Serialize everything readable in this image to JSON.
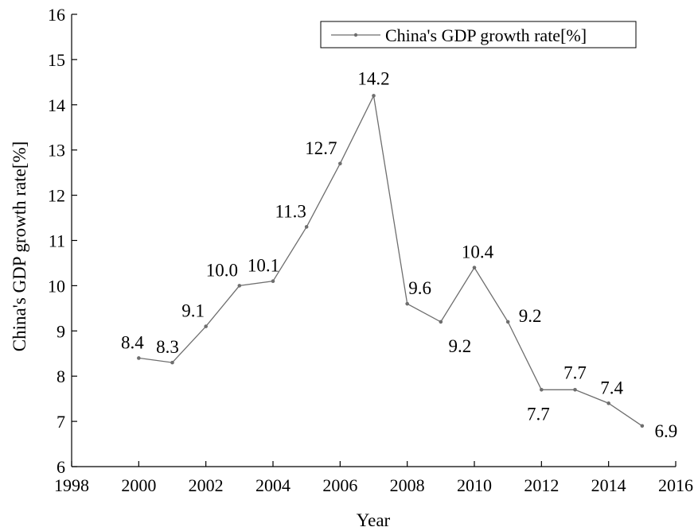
{
  "chart_data": {
    "type": "line",
    "title": "",
    "xlabel": "Year",
    "ylabel": "China's GDP growth rate[%]",
    "xlim": [
      1998,
      2016
    ],
    "ylim": [
      6,
      16
    ],
    "x_ticks": [
      1998,
      2000,
      2002,
      2004,
      2006,
      2008,
      2010,
      2012,
      2014,
      2016
    ],
    "y_ticks": [
      6,
      7,
      8,
      9,
      10,
      11,
      12,
      13,
      14,
      15,
      16
    ],
    "grid": false,
    "legend_position": "top-right",
    "series": [
      {
        "name": "China's GDP growth rate[%]",
        "color": "#6e6e6e",
        "x": [
          2000,
          2001,
          2002,
          2003,
          2004,
          2005,
          2006,
          2007,
          2008,
          2009,
          2010,
          2011,
          2012,
          2013,
          2014,
          2015
        ],
        "y": [
          8.4,
          8.3,
          9.1,
          10.0,
          10.1,
          11.3,
          12.7,
          14.2,
          9.6,
          9.2,
          10.4,
          9.2,
          7.7,
          7.7,
          7.4,
          6.9
        ],
        "labels": [
          "8.4",
          "8.3",
          "9.1",
          "10.0",
          "10.1",
          "11.3",
          "12.7",
          "14.2",
          "9.6",
          "9.2",
          "10.4",
          "9.2",
          "7.7",
          "7.7",
          "7.4",
          "6.9"
        ]
      }
    ]
  }
}
